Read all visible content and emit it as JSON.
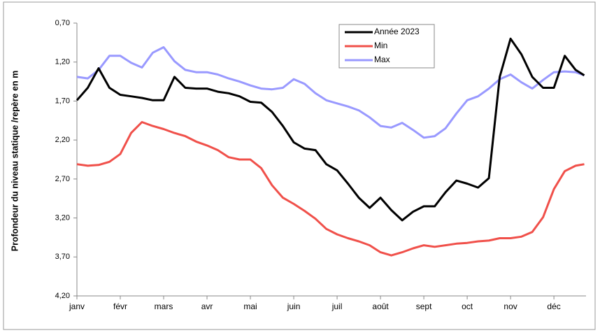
{
  "chart_data": {
    "type": "line",
    "y_label": "Profondeur du niveau statique /repère en m",
    "x": [
      0,
      0.25,
      0.5,
      0.75,
      1,
      1.25,
      1.5,
      1.75,
      2,
      2.25,
      2.5,
      2.75,
      3,
      3.25,
      3.5,
      3.75,
      4,
      4.25,
      4.5,
      4.75,
      5,
      5.25,
      5.5,
      5.75,
      6,
      6.25,
      6.5,
      6.75,
      7,
      7.25,
      7.5,
      7.75,
      8,
      8.25,
      8.5,
      8.75,
      9,
      9.25,
      9.5,
      9.75,
      10,
      10.25,
      10.5,
      10.75,
      11,
      11.25,
      11.5,
      11.7
    ],
    "series": [
      {
        "name": "Année 2023",
        "color": "#000000",
        "values": [
          1.69,
          1.53,
          1.28,
          1.53,
          1.62,
          1.64,
          1.66,
          1.69,
          1.69,
          1.39,
          1.53,
          1.54,
          1.54,
          1.58,
          1.6,
          1.64,
          1.71,
          1.72,
          1.84,
          2.02,
          2.23,
          2.31,
          2.33,
          2.51,
          2.59,
          2.76,
          2.94,
          3.07,
          2.94,
          3.1,
          3.23,
          3.12,
          3.05,
          3.05,
          2.87,
          2.72,
          2.76,
          2.81,
          2.69,
          1.39,
          0.9,
          1.1,
          1.39,
          1.53,
          1.53,
          1.12,
          1.3,
          1.37
        ]
      },
      {
        "name": "Min",
        "color": "#f0504a",
        "values": [
          2.51,
          2.53,
          2.52,
          2.48,
          2.38,
          2.11,
          1.97,
          2.02,
          2.06,
          2.11,
          2.15,
          2.22,
          2.27,
          2.33,
          2.42,
          2.45,
          2.45,
          2.56,
          2.78,
          2.94,
          3.02,
          3.11,
          3.21,
          3.34,
          3.41,
          3.46,
          3.5,
          3.55,
          3.64,
          3.68,
          3.64,
          3.59,
          3.55,
          3.57,
          3.55,
          3.53,
          3.52,
          3.5,
          3.49,
          3.46,
          3.46,
          3.44,
          3.38,
          3.19,
          2.83,
          2.6,
          2.53,
          2.51
        ]
      },
      {
        "name": "Max",
        "color": "#9999ff",
        "values": [
          1.39,
          1.41,
          1.3,
          1.12,
          1.12,
          1.21,
          1.27,
          1.08,
          1.01,
          1.19,
          1.3,
          1.33,
          1.33,
          1.36,
          1.41,
          1.45,
          1.5,
          1.54,
          1.55,
          1.53,
          1.42,
          1.48,
          1.6,
          1.69,
          1.73,
          1.77,
          1.82,
          1.91,
          2.02,
          2.04,
          1.98,
          2.07,
          2.17,
          2.15,
          2.05,
          1.86,
          1.69,
          1.64,
          1.54,
          1.42,
          1.36,
          1.46,
          1.54,
          1.43,
          1.33,
          1.32,
          1.33,
          1.37
        ]
      }
    ],
    "xlim": [
      0,
      11.74
    ],
    "xticks": [
      {
        "value": 0,
        "label": "janv"
      },
      {
        "value": 1,
        "label": "févr"
      },
      {
        "value": 2,
        "label": "mars"
      },
      {
        "value": 3,
        "label": "avr"
      },
      {
        "value": 4,
        "label": "mai"
      },
      {
        "value": 5,
        "label": "juin"
      },
      {
        "value": 6,
        "label": "juil"
      },
      {
        "value": 7,
        "label": "août"
      },
      {
        "value": 8,
        "label": "sept"
      },
      {
        "value": 9,
        "label": "oct"
      },
      {
        "value": 10,
        "label": "nov"
      },
      {
        "value": 11,
        "label": "déc"
      }
    ],
    "ylim": [
      4.2,
      0.7
    ],
    "yticks": [
      {
        "value": 0.7,
        "label": "0,70"
      },
      {
        "value": 1.2,
        "label": "1,20"
      },
      {
        "value": 1.7,
        "label": "1,70"
      },
      {
        "value": 2.2,
        "label": "2,20"
      },
      {
        "value": 2.7,
        "label": "2,70"
      },
      {
        "value": 3.2,
        "label": "3,20"
      },
      {
        "value": 3.7,
        "label": "3,70"
      },
      {
        "value": 4.2,
        "label": "4,20"
      }
    ],
    "grid": false,
    "legend": "top"
  }
}
